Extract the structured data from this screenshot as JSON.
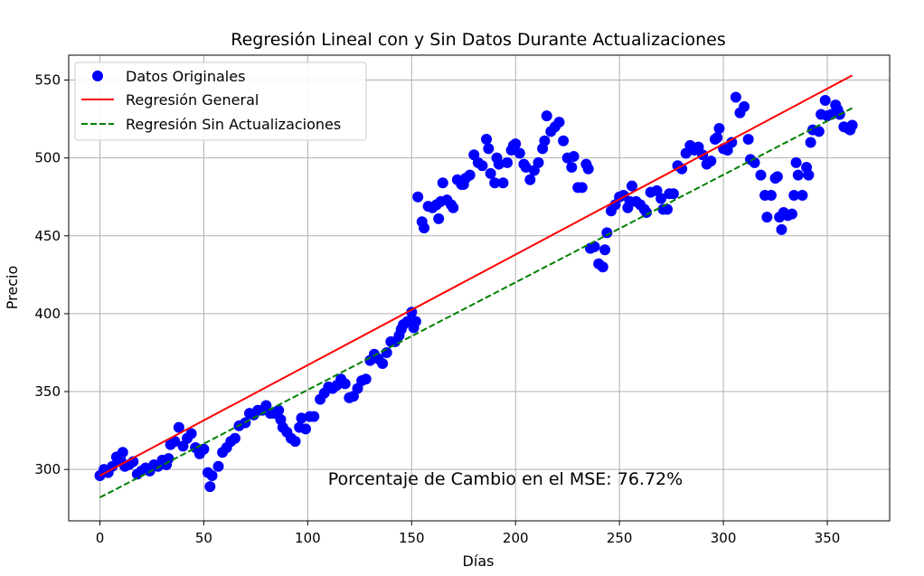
{
  "chart_data": {
    "type": "scatter",
    "title": "Regresión Lineal con y Sin Datos Durante Actualizaciones",
    "xlabel": "Días",
    "ylabel": "Precio",
    "xlim": [
      -15,
      380
    ],
    "ylim": [
      267,
      566
    ],
    "xticks": [
      0,
      50,
      100,
      150,
      200,
      250,
      300,
      350
    ],
    "yticks": [
      300,
      350,
      400,
      450,
      500,
      550
    ],
    "grid": true,
    "legend_position": "top-left",
    "annotation": "Porcentaje de Cambio en el MSE: 76.72%",
    "colors": {
      "points": "#0000ff",
      "general": "#ff0000",
      "sin_actualizaciones": "#008000",
      "grid": "#b0b0b0"
    },
    "series": [
      {
        "name": "Datos Originales",
        "kind": "scatter",
        "points": [
          [
            0,
            296
          ],
          [
            2,
            300
          ],
          [
            4,
            298
          ],
          [
            6,
            302
          ],
          [
            8,
            308
          ],
          [
            10,
            306
          ],
          [
            11,
            311
          ],
          [
            12,
            302
          ],
          [
            14,
            303
          ],
          [
            16,
            305
          ],
          [
            18,
            297
          ],
          [
            20,
            299
          ],
          [
            22,
            301
          ],
          [
            24,
            299
          ],
          [
            26,
            303
          ],
          [
            28,
            302
          ],
          [
            30,
            306
          ],
          [
            32,
            303
          ],
          [
            33,
            307
          ],
          [
            34,
            316
          ],
          [
            36,
            318
          ],
          [
            38,
            327
          ],
          [
            40,
            315
          ],
          [
            42,
            320
          ],
          [
            44,
            323
          ],
          [
            46,
            314
          ],
          [
            48,
            310
          ],
          [
            50,
            313
          ],
          [
            52,
            298
          ],
          [
            53,
            289
          ],
          [
            54,
            296
          ],
          [
            57,
            302
          ],
          [
            59,
            311
          ],
          [
            61,
            314
          ],
          [
            63,
            318
          ],
          [
            65,
            320
          ],
          [
            67,
            328
          ],
          [
            70,
            330
          ],
          [
            72,
            336
          ],
          [
            74,
            335
          ],
          [
            76,
            338
          ],
          [
            78,
            338
          ],
          [
            80,
            341
          ],
          [
            82,
            336
          ],
          [
            84,
            336
          ],
          [
            86,
            338
          ],
          [
            87,
            332
          ],
          [
            88,
            327
          ],
          [
            90,
            324
          ],
          [
            92,
            320
          ],
          [
            94,
            318
          ],
          [
            96,
            327
          ],
          [
            97,
            333
          ],
          [
            99,
            326
          ],
          [
            101,
            334
          ],
          [
            103,
            334
          ],
          [
            106,
            345
          ],
          [
            108,
            349
          ],
          [
            110,
            353
          ],
          [
            112,
            352
          ],
          [
            114,
            354
          ],
          [
            116,
            358
          ],
          [
            118,
            355
          ],
          [
            120,
            346
          ],
          [
            122,
            347
          ],
          [
            124,
            352
          ],
          [
            126,
            357
          ],
          [
            128,
            358
          ],
          [
            130,
            370
          ],
          [
            132,
            374
          ],
          [
            134,
            371
          ],
          [
            136,
            368
          ],
          [
            138,
            375
          ],
          [
            140,
            382
          ],
          [
            142,
            382
          ],
          [
            144,
            386
          ],
          [
            145,
            390
          ],
          [
            146,
            393
          ],
          [
            148,
            395
          ],
          [
            150,
            401
          ],
          [
            151,
            391
          ],
          [
            152,
            395
          ],
          [
            153,
            475
          ],
          [
            155,
            459
          ],
          [
            156,
            455
          ],
          [
            158,
            469
          ],
          [
            160,
            468
          ],
          [
            162,
            470
          ],
          [
            163,
            461
          ],
          [
            164,
            472
          ],
          [
            165,
            484
          ],
          [
            167,
            473
          ],
          [
            169,
            470
          ],
          [
            170,
            468
          ],
          [
            172,
            486
          ],
          [
            174,
            483
          ],
          [
            175,
            483
          ],
          [
            176,
            487
          ],
          [
            178,
            489
          ],
          [
            180,
            502
          ],
          [
            182,
            497
          ],
          [
            184,
            495
          ],
          [
            186,
            512
          ],
          [
            187,
            506
          ],
          [
            188,
            490
          ],
          [
            190,
            484
          ],
          [
            191,
            500
          ],
          [
            192,
            496
          ],
          [
            194,
            484
          ],
          [
            196,
            497
          ],
          [
            198,
            505
          ],
          [
            199,
            508
          ],
          [
            200,
            509
          ],
          [
            202,
            503
          ],
          [
            204,
            496
          ],
          [
            205,
            494
          ],
          [
            207,
            486
          ],
          [
            209,
            492
          ],
          [
            211,
            497
          ],
          [
            213,
            506
          ],
          [
            214,
            511
          ],
          [
            215,
            527
          ],
          [
            217,
            517
          ],
          [
            219,
            520
          ],
          [
            221,
            523
          ],
          [
            223,
            511
          ],
          [
            225,
            500
          ],
          [
            227,
            494
          ],
          [
            228,
            501
          ],
          [
            230,
            481
          ],
          [
            232,
            481
          ],
          [
            234,
            496
          ],
          [
            235,
            493
          ],
          [
            236,
            442
          ],
          [
            238,
            443
          ],
          [
            240,
            432
          ],
          [
            242,
            430
          ],
          [
            243,
            441
          ],
          [
            244,
            452
          ],
          [
            246,
            466
          ],
          [
            248,
            470
          ],
          [
            250,
            475
          ],
          [
            252,
            476
          ],
          [
            254,
            468
          ],
          [
            255,
            472
          ],
          [
            256,
            482
          ],
          [
            258,
            472
          ],
          [
            260,
            470
          ],
          [
            262,
            467
          ],
          [
            263,
            465
          ],
          [
            265,
            478
          ],
          [
            268,
            479
          ],
          [
            270,
            474
          ],
          [
            271,
            467
          ],
          [
            273,
            467
          ],
          [
            274,
            477
          ],
          [
            276,
            477
          ],
          [
            278,
            495
          ],
          [
            280,
            493
          ],
          [
            282,
            503
          ],
          [
            284,
            508
          ],
          [
            286,
            505
          ],
          [
            288,
            507
          ],
          [
            290,
            502
          ],
          [
            292,
            496
          ],
          [
            294,
            498
          ],
          [
            296,
            512
          ],
          [
            297,
            513
          ],
          [
            298,
            519
          ],
          [
            300,
            506
          ],
          [
            302,
            505
          ],
          [
            304,
            510
          ],
          [
            306,
            539
          ],
          [
            308,
            529
          ],
          [
            310,
            533
          ],
          [
            312,
            512
          ],
          [
            313,
            499
          ],
          [
            315,
            497
          ],
          [
            318,
            489
          ],
          [
            320,
            476
          ],
          [
            321,
            462
          ],
          [
            323,
            476
          ],
          [
            325,
            487
          ],
          [
            326,
            488
          ],
          [
            327,
            462
          ],
          [
            328,
            454
          ],
          [
            329,
            465
          ],
          [
            331,
            463
          ],
          [
            333,
            464
          ],
          [
            334,
            476
          ],
          [
            335,
            497
          ],
          [
            336,
            489
          ],
          [
            338,
            476
          ],
          [
            340,
            494
          ],
          [
            341,
            489
          ],
          [
            342,
            510
          ],
          [
            343,
            518
          ],
          [
            346,
            517
          ],
          [
            347,
            528
          ],
          [
            349,
            537
          ],
          [
            350,
            527
          ],
          [
            352,
            528
          ],
          [
            354,
            534
          ],
          [
            355,
            531
          ],
          [
            356,
            528
          ],
          [
            358,
            520
          ],
          [
            360,
            519
          ],
          [
            361,
            518
          ],
          [
            362,
            521
          ]
        ]
      },
      {
        "name": "Regresión General",
        "kind": "line",
        "style": "solid",
        "x": [
          0,
          362
        ],
        "y": [
          296,
          553
        ]
      },
      {
        "name": "Regresión Sin Actualizaciones",
        "kind": "line",
        "style": "dashed",
        "x": [
          0,
          362
        ],
        "y": [
          282,
          532
        ]
      }
    ]
  }
}
